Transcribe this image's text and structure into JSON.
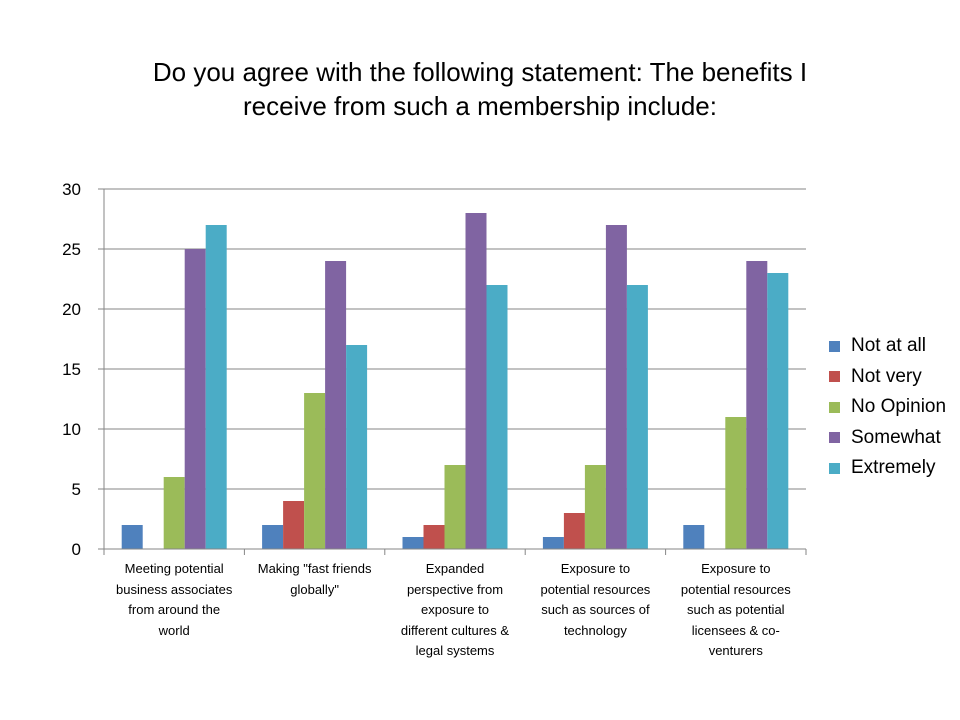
{
  "chart_data": {
    "type": "bar",
    "title_lines": [
      "Do you agree with the following statement:  The benefits I",
      "receive from such a membership include:"
    ],
    "categories": [
      "Meeting potential business associates from around the world",
      "Making \"fast friends globally\"",
      "Expanded perspective from exposure to different cultures & legal systems",
      "Exposure to potential resources such as sources of technology",
      "Exposure to potential resources such as potential licensees & co-venturers"
    ],
    "category_lines": [
      [
        "Meeting potential",
        "business associates",
        "from around the",
        "world"
      ],
      [
        "Making \"fast friends",
        "globally\""
      ],
      [
        "Expanded",
        "perspective from",
        "exposure to",
        "different cultures &",
        "legal systems"
      ],
      [
        "Exposure to",
        "potential resources",
        "such as sources of",
        "technology"
      ],
      [
        "Exposure to",
        "potential resources",
        "such as potential",
        "licensees & co-",
        "venturers"
      ]
    ],
    "series": [
      {
        "name": "Not at all",
        "color": "#4F81BD",
        "values": [
          2,
          2,
          1,
          1,
          2
        ]
      },
      {
        "name": "Not very",
        "color": "#C0504D",
        "values": [
          0,
          4,
          2,
          3,
          0
        ]
      },
      {
        "name": "No Opinion",
        "color": "#9BBB59",
        "values": [
          6,
          13,
          7,
          7,
          11
        ]
      },
      {
        "name": "Somewhat",
        "color": "#8064A2",
        "values": [
          25,
          24,
          28,
          27,
          24
        ]
      },
      {
        "name": "Extremely",
        "color": "#4BACC6",
        "values": [
          27,
          17,
          22,
          22,
          23
        ]
      }
    ],
    "ylim": [
      0,
      30
    ],
    "yticks": [
      0,
      5,
      10,
      15,
      20,
      25,
      30
    ],
    "grid": true,
    "legend_position": "right",
    "xlabel": "",
    "ylabel": ""
  }
}
